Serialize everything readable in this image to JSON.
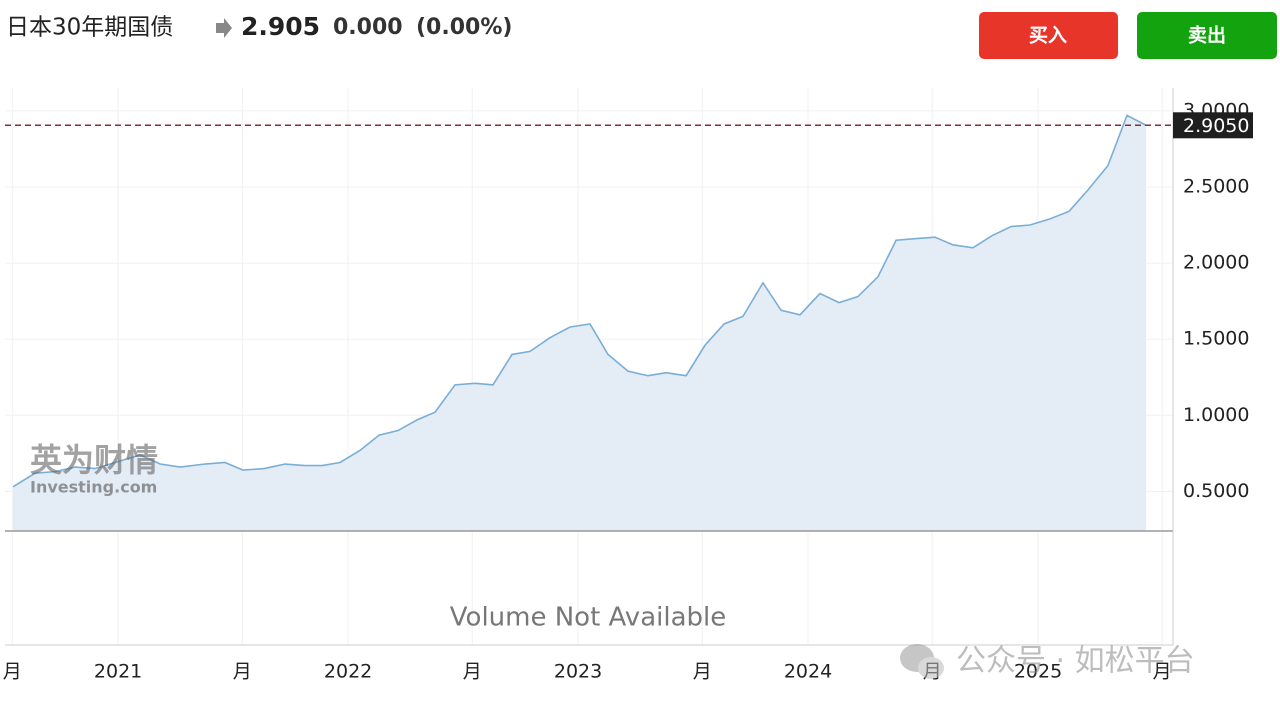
{
  "header": {
    "title": "日本30年期国债",
    "price": "2.905",
    "change": "0.000",
    "change_pct": "(0.00%)"
  },
  "buttons": {
    "buy": "买入",
    "sell": "卖出"
  },
  "watermark": {
    "brand_cn": "英为财情",
    "brand_en": "Investing.com",
    "wechat": "公众号 · 如松平台"
  },
  "volume_note": "Volume Not Available",
  "chart_data": {
    "type": "area",
    "x": [
      2020.543,
      2020.639,
      2020.726,
      2020.813,
      2020.9,
      2020.987,
      2021.096,
      2021.183,
      2021.27,
      2021.378,
      2021.465,
      2021.543,
      2021.635,
      2021.726,
      2021.813,
      2021.887,
      2021.965,
      2022.052,
      2022.135,
      2022.217,
      2022.3,
      2022.378,
      2022.465,
      2022.552,
      2022.63,
      2022.713,
      2022.791,
      2022.878,
      2022.965,
      2023.052,
      2023.13,
      2023.217,
      2023.304,
      2023.383,
      2023.47,
      2023.552,
      2023.635,
      2023.717,
      2023.804,
      2023.883,
      2023.965,
      2024.052,
      2024.135,
      2024.217,
      2024.304,
      2024.383,
      2024.465,
      2024.552,
      2024.63,
      2024.717,
      2024.8,
      2024.883,
      2024.965,
      2025.052,
      2025.135,
      2025.217,
      2025.304,
      2025.387,
      2025.47
    ],
    "values": [
      0.53,
      0.62,
      0.63,
      0.66,
      0.65,
      0.69,
      0.74,
      0.68,
      0.66,
      0.68,
      0.69,
      0.64,
      0.65,
      0.68,
      0.67,
      0.67,
      0.69,
      0.77,
      0.87,
      0.9,
      0.97,
      1.02,
      1.2,
      1.21,
      1.2,
      1.4,
      1.42,
      1.51,
      1.58,
      1.6,
      1.4,
      1.29,
      1.26,
      1.28,
      1.26,
      1.46,
      1.6,
      1.65,
      1.87,
      1.69,
      1.66,
      1.8,
      1.74,
      1.78,
      1.91,
      2.15,
      2.16,
      2.17,
      2.12,
      2.1,
      2.18,
      2.24,
      2.25,
      2.29,
      2.34,
      2.48,
      2.64,
      2.97,
      2.905
    ],
    "color": "#7aaed6",
    "fill": "#e4edf6",
    "xlim": [
      2020.543,
      2025.587
    ],
    "xticks": [
      {
        "value": 2020.54,
        "label": "月"
      },
      2021,
      {
        "value": 2021.54,
        "label": "月"
      },
      2022,
      {
        "value": 2022.54,
        "label": "月"
      },
      2023,
      {
        "value": 2023.54,
        "label": "月"
      },
      2024,
      {
        "value": 2024.54,
        "label": "月"
      },
      2025,
      {
        "value": 2025.54,
        "label": "月"
      }
    ],
    "ylim": [
      0.24,
      3.15
    ],
    "yticks": [
      {
        "value": 0.5,
        "label": "0.5000"
      },
      {
        "value": 1,
        "label": "1.0000"
      },
      {
        "value": 1.5,
        "label": "1.5000"
      },
      {
        "value": 2,
        "label": "2.0000"
      },
      {
        "value": 2.5,
        "label": "2.5000"
      },
      {
        "value": 3,
        "label": "3.0000"
      }
    ],
    "price_line": {
      "value": 2.905,
      "label": "2.9050"
    },
    "grid": true
  }
}
